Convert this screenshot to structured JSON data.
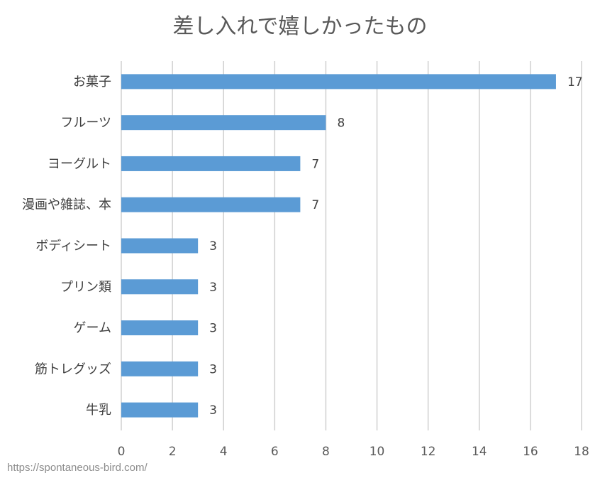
{
  "chart_data": {
    "type": "bar",
    "orientation": "horizontal",
    "title": "差し入れで嬉しかったもの",
    "categories": [
      "お菓子",
      "フルーツ",
      "ヨーグルト",
      "漫画や雑誌、本",
      "ボディシート",
      "プリン類",
      "ゲーム",
      "筋トレグッズ",
      "牛乳"
    ],
    "values": [
      17,
      8,
      7,
      7,
      3,
      3,
      3,
      3,
      3
    ],
    "xlim": [
      0,
      18
    ],
    "xticks": [
      0,
      2,
      4,
      6,
      8,
      10,
      12,
      14,
      16,
      18
    ],
    "xlabel": "",
    "ylabel": "",
    "grid": true,
    "legend": "none",
    "bar_color": "#5b9bd5"
  },
  "source_url": "https://spontaneous-bird.com/"
}
